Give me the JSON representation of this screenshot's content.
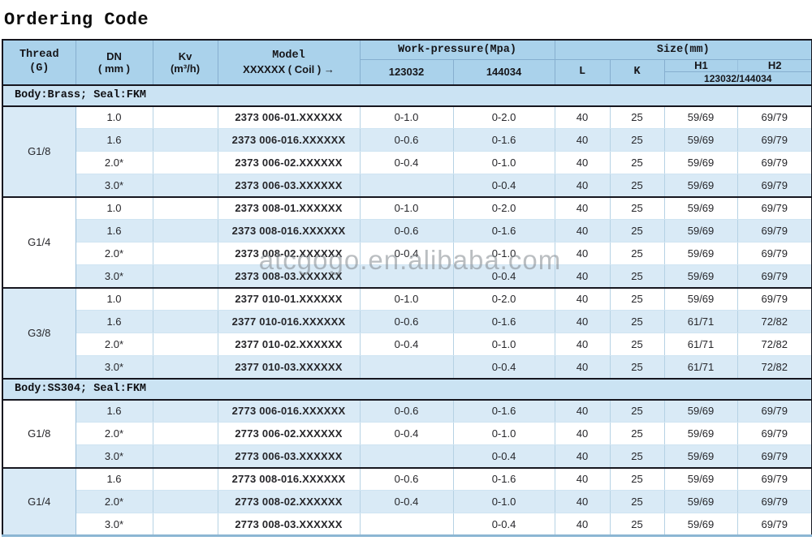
{
  "page": {
    "title": "Ordering Code",
    "watermark": "atcgogo.en.alibaba.com"
  },
  "colors": {
    "dark_border": "#16161f",
    "header_bg": "#aad2eb",
    "section_bg": "#cbe3f3",
    "stripe_bg": "#d9eaf6",
    "white_bg": "#ffffff",
    "bottom_line": "#8cb6d3"
  },
  "table": {
    "header": {
      "thread_l1": "Thread",
      "thread_l2": "(G)",
      "dn_l1": "DN",
      "dn_l2": "( mm )",
      "kv_l1": "Kv",
      "kv_l2": "(m³/h)",
      "model_l1": "Model",
      "model_l2": "XXXXXX ( Coil ) →",
      "work_pressure_label": "Work-pressure(Mpa)",
      "wp_col1": "123032",
      "wp_col2": "144034",
      "size_label": "Size(mm)",
      "col_l": "L",
      "col_k": "K",
      "col_h1": "H1",
      "col_h2": "H2",
      "h_sub": "123032/144034"
    },
    "sections": [
      {
        "label": "Body:Brass; Seal:FKM",
        "groups": [
          {
            "thread": "G1/8",
            "rows": [
              {
                "dn": "1.0",
                "kv": "",
                "model": "2373 006-01.XXXXXX",
                "p1": "0-1.0",
                "p2": "0-2.0",
                "l": "40",
                "k": "25",
                "h1": "59/69",
                "h2": "69/79"
              },
              {
                "dn": "1.6",
                "kv": "",
                "model": "2373 006-016.XXXXXX",
                "p1": "0-0.6",
                "p2": "0-1.6",
                "l": "40",
                "k": "25",
                "h1": "59/69",
                "h2": "69/79"
              },
              {
                "dn": "2.0*",
                "kv": "",
                "model": "2373 006-02.XXXXXX",
                "p1": "0-0.4",
                "p2": "0-1.0",
                "l": "40",
                "k": "25",
                "h1": "59/69",
                "h2": "69/79"
              },
              {
                "dn": "3.0*",
                "kv": "",
                "model": "2373 006-03.XXXXXX",
                "p1": "",
                "p2": "0-0.4",
                "l": "40",
                "k": "25",
                "h1": "59/69",
                "h2": "69/79"
              }
            ]
          },
          {
            "thread": "G1/4",
            "rows": [
              {
                "dn": "1.0",
                "kv": "",
                "model": "2373 008-01.XXXXXX",
                "p1": "0-1.0",
                "p2": "0-2.0",
                "l": "40",
                "k": "25",
                "h1": "59/69",
                "h2": "69/79"
              },
              {
                "dn": "1.6",
                "kv": "",
                "model": "2373 008-016.XXXXXX",
                "p1": "0-0.6",
                "p2": "0-1.6",
                "l": "40",
                "k": "25",
                "h1": "59/69",
                "h2": "69/79"
              },
              {
                "dn": "2.0*",
                "kv": "",
                "model": "2373 008-02.XXXXXX",
                "p1": "0-0.4",
                "p2": "0-1.0",
                "l": "40",
                "k": "25",
                "h1": "59/69",
                "h2": "69/79"
              },
              {
                "dn": "3.0*",
                "kv": "",
                "model": "2373 008-03.XXXXXX",
                "p1": "",
                "p2": "0-0.4",
                "l": "40",
                "k": "25",
                "h1": "59/69",
                "h2": "69/79"
              }
            ]
          },
          {
            "thread": "G3/8",
            "rows": [
              {
                "dn": "1.0",
                "kv": "",
                "model": "2377 010-01.XXXXXX",
                "p1": "0-1.0",
                "p2": "0-2.0",
                "l": "40",
                "k": "25",
                "h1": "59/69",
                "h2": "69/79"
              },
              {
                "dn": "1.6",
                "kv": "",
                "model": "2377 010-016.XXXXXX",
                "p1": "0-0.6",
                "p2": "0-1.6",
                "l": "40",
                "k": "25",
                "h1": "61/71",
                "h2": "72/82"
              },
              {
                "dn": "2.0*",
                "kv": "",
                "model": "2377 010-02.XXXXXX",
                "p1": "0-0.4",
                "p2": "0-1.0",
                "l": "40",
                "k": "25",
                "h1": "61/71",
                "h2": "72/82"
              },
              {
                "dn": "3.0*",
                "kv": "",
                "model": "2377 010-03.XXXXXX",
                "p1": "",
                "p2": "0-0.4",
                "l": "40",
                "k": "25",
                "h1": "61/71",
                "h2": "72/82"
              }
            ]
          }
        ]
      },
      {
        "label": "Body:SS304; Seal:FKM",
        "groups": [
          {
            "thread": "G1/8",
            "rows": [
              {
                "dn": "1.6",
                "kv": "",
                "model": "2773 006-016.XXXXXX",
                "p1": "0-0.6",
                "p2": "0-1.6",
                "l": "40",
                "k": "25",
                "h1": "59/69",
                "h2": "69/79"
              },
              {
                "dn": "2.0*",
                "kv": "",
                "model": "2773 006-02.XXXXXX",
                "p1": "0-0.4",
                "p2": "0-1.0",
                "l": "40",
                "k": "25",
                "h1": "59/69",
                "h2": "69/79"
              },
              {
                "dn": "3.0*",
                "kv": "",
                "model": "2773 006-03.XXXXXX",
                "p1": "",
                "p2": "0-0.4",
                "l": "40",
                "k": "25",
                "h1": "59/69",
                "h2": "69/79"
              }
            ]
          },
          {
            "thread": "G1/4",
            "rows": [
              {
                "dn": "1.6",
                "kv": "",
                "model": "2773 008-016.XXXXXX",
                "p1": "0-0.6",
                "p2": "0-1.6",
                "l": "40",
                "k": "25",
                "h1": "59/69",
                "h2": "69/79"
              },
              {
                "dn": "2.0*",
                "kv": "",
                "model": "2773 008-02.XXXXXX",
                "p1": "0-0.4",
                "p2": "0-1.0",
                "l": "40",
                "k": "25",
                "h1": "59/69",
                "h2": "69/79"
              },
              {
                "dn": "3.0*",
                "kv": "",
                "model": "2773 008-03.XXXXXX",
                "p1": "",
                "p2": "0-0.4",
                "l": "40",
                "k": "25",
                "h1": "59/69",
                "h2": "69/79"
              }
            ]
          }
        ]
      }
    ]
  }
}
